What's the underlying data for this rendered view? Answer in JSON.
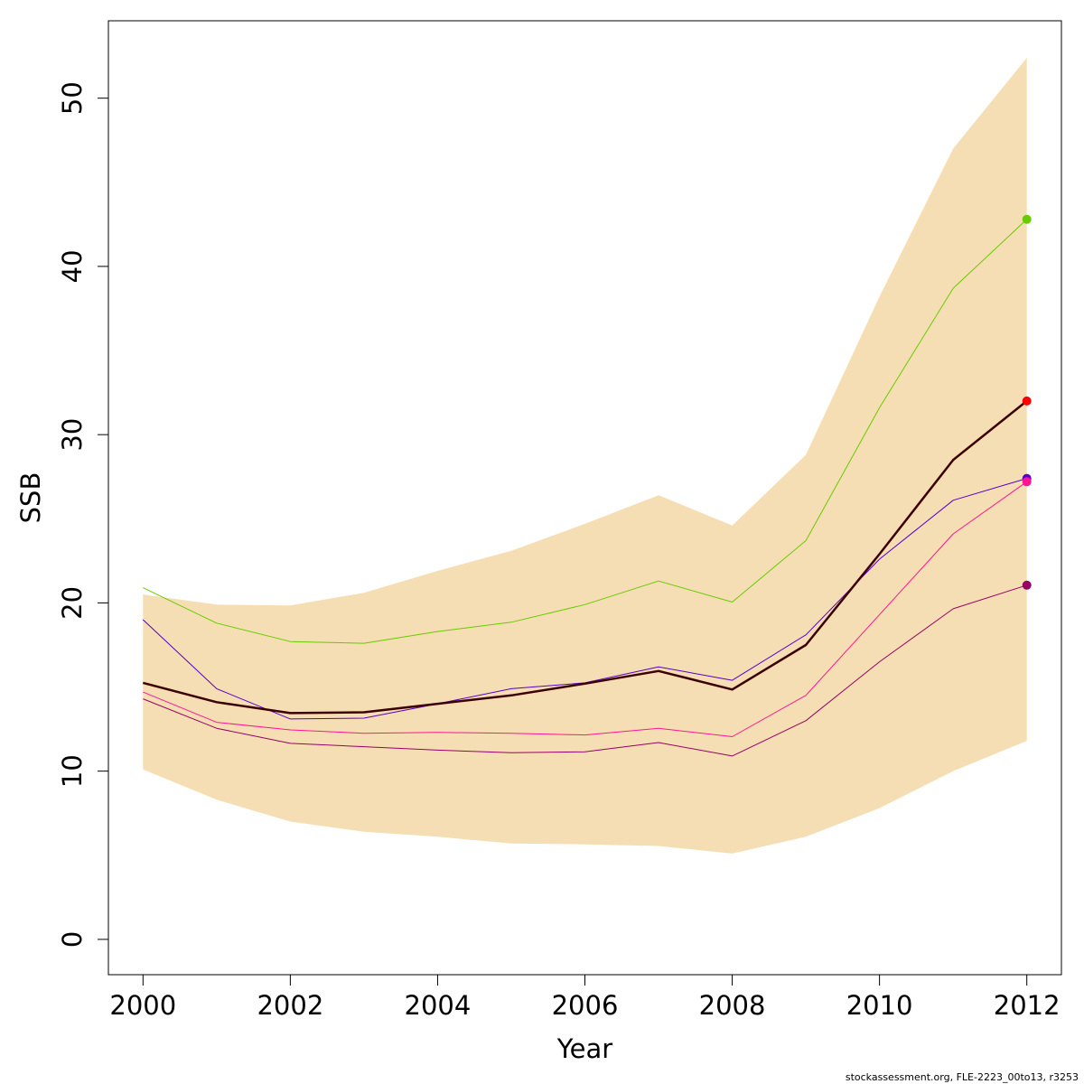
{
  "chart_data": {
    "type": "line",
    "title": "",
    "xlabel": "Year",
    "ylabel": "SSB",
    "xlim": [
      1999.53,
      2012.47
    ],
    "ylim": [
      -2.1,
      54.6
    ],
    "x_ticks": [
      2000,
      2002,
      2004,
      2006,
      2008,
      2010,
      2012
    ],
    "y_ticks": [
      0,
      10,
      20,
      30,
      40,
      50
    ],
    "x": [
      2000,
      2001,
      2002,
      2003,
      2004,
      2005,
      2006,
      2007,
      2008,
      2009,
      2010,
      2011,
      2012
    ],
    "band": {
      "color": "#F5DEB3",
      "lower": [
        10.1,
        8.3,
        7.0,
        6.4,
        6.1,
        5.7,
        5.65,
        5.55,
        5.1,
        6.1,
        7.8,
        10.0,
        11.8
      ],
      "upper": [
        20.5,
        19.9,
        19.85,
        20.6,
        21.9,
        23.1,
        24.7,
        26.4,
        24.6,
        28.8,
        38.2,
        47.0,
        52.4
      ]
    },
    "series": [
      {
        "color": "#66CC00",
        "width": 1,
        "values": [
          20.9,
          18.8,
          17.7,
          17.6,
          18.3,
          18.85,
          19.9,
          21.3,
          20.05,
          23.7,
          31.6,
          38.7,
          42.8
        ]
      },
      {
        "color": "#5500CC",
        "width": 1,
        "values": [
          19.0,
          14.9,
          13.1,
          13.15,
          14.0,
          14.9,
          15.25,
          16.2,
          15.4,
          18.1,
          22.6,
          26.1,
          27.4
        ]
      },
      {
        "color": "#FF1493",
        "width": 1,
        "values": [
          14.7,
          12.9,
          12.45,
          12.25,
          12.3,
          12.25,
          12.15,
          12.55,
          12.05,
          14.5,
          19.3,
          24.1,
          27.2
        ]
      },
      {
        "color": "#990066",
        "width": 1,
        "values": [
          14.3,
          12.55,
          11.65,
          11.45,
          11.25,
          11.1,
          11.15,
          11.7,
          10.9,
          13.0,
          16.5,
          19.65,
          21.05
        ]
      },
      {
        "color": "#3B0000",
        "width": 2.5,
        "values": [
          15.25,
          14.1,
          13.45,
          13.5,
          14.0,
          14.5,
          15.2,
          15.95,
          14.85,
          17.5,
          22.9,
          28.5,
          32.0
        ]
      }
    ],
    "end_points": [
      {
        "value": 42.8,
        "color": "#66CC00"
      },
      {
        "value": 32.0,
        "color": "#FF0000"
      },
      {
        "value": 27.4,
        "color": "#5500CC"
      },
      {
        "value": 27.2,
        "color": "#FF1493"
      },
      {
        "value": 21.05,
        "color": "#990066"
      }
    ],
    "grid": false,
    "legend": "none"
  },
  "footer": "stockassessment.org, FLE-2223_00to13, r3253"
}
